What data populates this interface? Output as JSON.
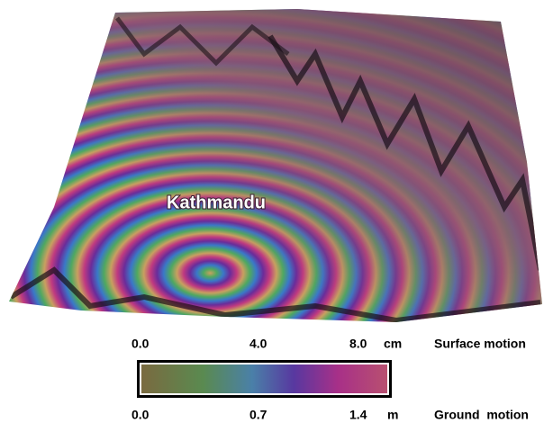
{
  "map": {
    "place_label": "Kathmandu"
  },
  "colorbar": {
    "top": {
      "ticks": [
        "0.0",
        "4.0",
        "8.0"
      ],
      "unit": "cm",
      "label": "Surface motion"
    },
    "bottom": {
      "ticks": [
        "0.0",
        "0.7",
        "1.4"
      ],
      "unit": "m",
      "label": "Ground  motion"
    }
  }
}
